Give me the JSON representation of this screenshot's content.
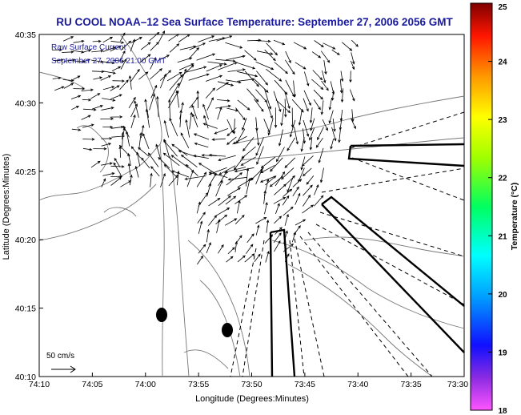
{
  "chart_data": {
    "type": "scatter",
    "title": "RU COOL  NOAA–12  Sea Surface Temperature:  September 27, 2006 2056 GMT",
    "inset_text": [
      "Raw Surface Current",
      "September 27, 2006 21:00 GMT"
    ],
    "xlabel": "Longitude (Degrees:Minutes)",
    "ylabel": "Latitude (Degrees:Minutes)",
    "x_ticks": [
      "74:10",
      "74:05",
      "74:00",
      "73:55",
      "73:50",
      "73:45",
      "73:40",
      "73:35",
      "73:30"
    ],
    "y_ticks": [
      "40:10",
      "40:15",
      "40:20",
      "40:25",
      "40:30",
      "40:35"
    ],
    "xlim_minutes_west_of_73": [
      70,
      30
    ],
    "ylim_minutes_north_of_40": [
      10,
      35
    ],
    "scale_label": "50 cm/s",
    "colorbar": {
      "label": "Temperature (°C)",
      "min": 18,
      "max": 25,
      "ticks": [
        "18",
        "19",
        "20",
        "21",
        "22",
        "23",
        "24",
        "25"
      ]
    },
    "grid": false,
    "markers": [
      {
        "lon_min": 61.2,
        "lat_min": 14.5
      },
      {
        "lon_min": 55.8,
        "lat_min": 13.5
      }
    ],
    "vector_field": "surface currents (arrows), dense over the Hudson/Raritan plume region"
  },
  "colors": {
    "title": "#1a1a9c",
    "inset_text": "#1a1a9c",
    "axis": "#000000",
    "land_outline": "#808080",
    "vectors": "#000000"
  }
}
